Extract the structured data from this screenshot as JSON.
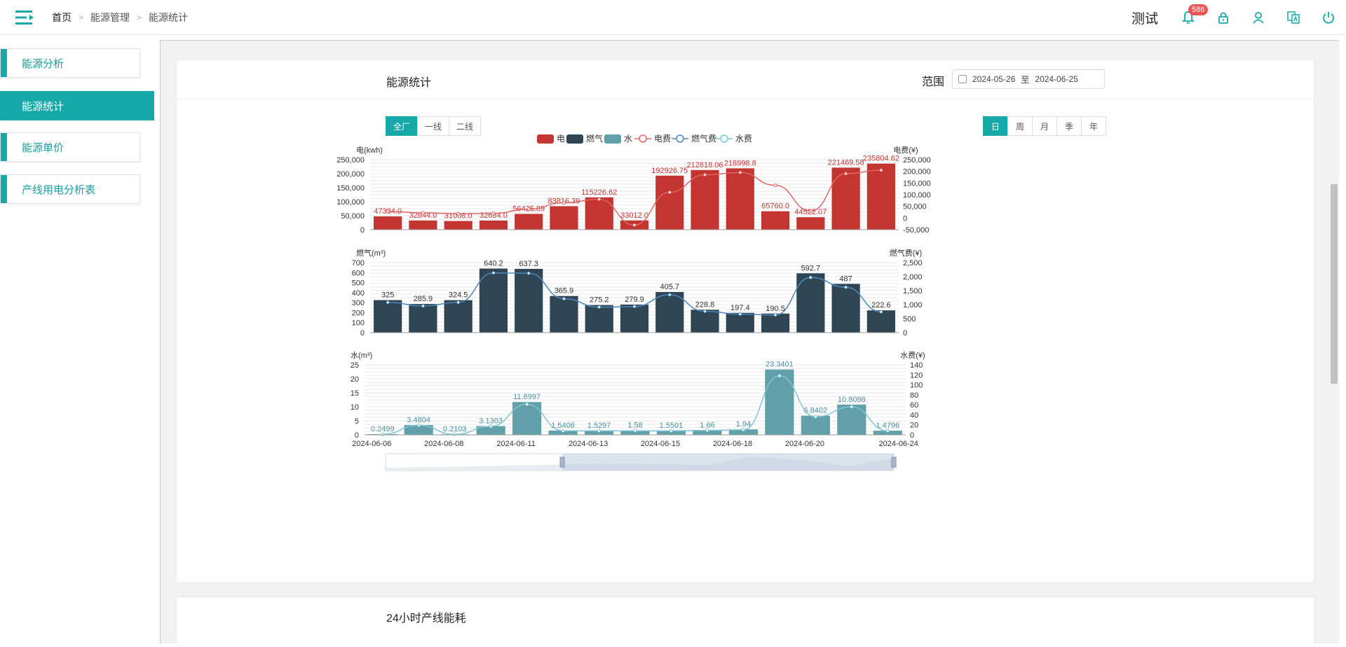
{
  "breadcrumb": {
    "home": "首页",
    "level2": "能源管理",
    "current": "能源统计"
  },
  "user": {
    "name": "测试",
    "notifications": "586"
  },
  "icons": [
    "menu-icon",
    "bell-icon",
    "lock-icon",
    "user-icon",
    "translate-icon",
    "power-icon"
  ],
  "sidebar": {
    "items": [
      {
        "label": "能源分析"
      },
      {
        "label": "能源统计"
      },
      {
        "label": "能源单价"
      },
      {
        "label": "产线用电分析表"
      }
    ]
  },
  "card": {
    "title": "能源统计",
    "range_label": "范围",
    "start_date": "2024-05-26",
    "to_label": "至",
    "end_date": "2024-06-25",
    "lines": [
      "全厂",
      "一线",
      "二线"
    ],
    "periods": [
      "日",
      "周",
      "月",
      "季",
      "年"
    ],
    "selected_line": "全厂",
    "selected_period": "日"
  },
  "card2": {
    "title": "24小时产线能耗"
  },
  "colors": {
    "accent": "#17a9a8",
    "electric": "#c23531",
    "gas": "#2f4554",
    "water": "#61a0a8",
    "electric_fee": "#e06666",
    "gas_fee": "#4a89bf",
    "water_fee": "#7ec5d6"
  },
  "chart_data": [
    {
      "type": "bar",
      "legend": [
        "电",
        "燃气",
        "水",
        "电费",
        "燃气费",
        "水费"
      ],
      "ylabel": "电(kwh)",
      "ylabel_right": "电费(¥)",
      "ylim": [
        0,
        250000
      ],
      "ylim_right": [
        -50000,
        250000
      ],
      "series": [
        {
          "name": "电",
          "values": [
            47384.0,
            32844.0,
            31008.0,
            32684.0,
            56425.89,
            83816.39,
            115226.62,
            33012.0,
            192926.75,
            212818.06,
            218998.8,
            65760.0,
            44522.07,
            221469.58,
            235804.62
          ]
        },
        {
          "name": "电费",
          "values": [
            28000,
            22000,
            18000,
            20000,
            38000,
            65000,
            80000,
            -30000,
            110000,
            185000,
            195000,
            140000,
            30000,
            190000,
            205000
          ]
        }
      ]
    },
    {
      "type": "bar",
      "ylabel": "燃气(m³)",
      "ylabel_right": "燃气费(¥)",
      "ylim": [
        0,
        700
      ],
      "ylim_right": [
        0,
        2500
      ],
      "series": [
        {
          "name": "燃气",
          "values": [
            325.0,
            285.9,
            324.5,
            640.2,
            637.3,
            365.9,
            275.2,
            279.9,
            405.7,
            228.8,
            197.4,
            190.5,
            592.7,
            487.0,
            222.6
          ]
        },
        {
          "name": "燃气费",
          "values": [
            1080,
            950,
            1080,
            2130,
            2120,
            1210,
            910,
            930,
            1350,
            760,
            660,
            630,
            1970,
            1620,
            740
          ]
        }
      ]
    },
    {
      "type": "bar",
      "ylabel": "水(m³)",
      "ylabel_right": "水费(¥)",
      "ylim": [
        0,
        25
      ],
      "ylim_right": [
        0,
        140
      ],
      "x_tick_labels": [
        "2024-06-06",
        "2024-06-08",
        "2024-06-11",
        "2024-06-13",
        "2024-06-15",
        "2024-06-18",
        "2024-06-20",
        "2024-06-24"
      ],
      "series": [
        {
          "name": "水",
          "values": [
            0.2499,
            3.4804,
            0.2103,
            3.1303,
            11.6997,
            1.5406,
            1.5297,
            1.58,
            1.5501,
            1.66,
            1.94,
            23.3401,
            6.8402,
            10.8098,
            1.4796
          ]
        },
        {
          "name": "水费",
          "values": [
            1,
            19,
            1,
            17,
            61,
            8,
            8,
            8,
            8,
            9,
            10,
            118,
            36,
            56,
            8
          ]
        }
      ]
    }
  ]
}
